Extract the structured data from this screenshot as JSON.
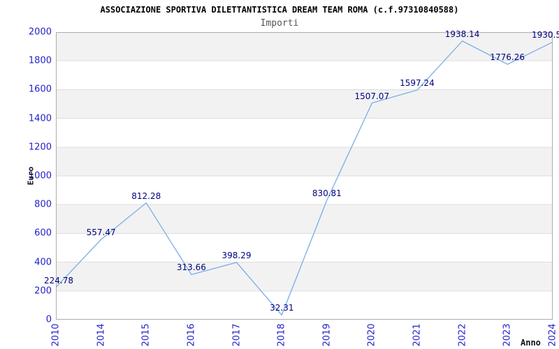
{
  "chart_data": {
    "type": "line",
    "title": "ASSOCIAZIONE SPORTIVA DILETTANTISTICA DREAM TEAM ROMA (c.f.97310840588)",
    "subtitle": "Importi",
    "xlabel": "Anno",
    "ylabel": "Euro",
    "categories": [
      "2010",
      "2014",
      "2015",
      "2016",
      "2017",
      "2018",
      "2019",
      "2020",
      "2021",
      "2022",
      "2023",
      "2024"
    ],
    "values": [
      224.78,
      557.47,
      812.28,
      313.66,
      398.29,
      32.31,
      830.81,
      1507.07,
      1597.24,
      1938.14,
      1776.26,
      1930.5
    ],
    "data_labels": [
      "224.78",
      "557.47",
      "812.28",
      "313.66",
      "398.29",
      "32.31",
      "830.81",
      "1507.07",
      "1597.24",
      "1938.14",
      "1776.26",
      "1930.5"
    ],
    "ylim": [
      0,
      2000
    ],
    "ytick_step": 200,
    "grid": true,
    "legend_position": "none",
    "colors": {
      "line": "#79ADE8",
      "band": "#F2F2F2",
      "gridline": "#DEDEDE",
      "axis_border": "#ADADAD",
      "tick_label": "#2222CC",
      "data_label": "#000080",
      "title": "#000000",
      "subtitle": "#555555",
      "axis_title": "#111111",
      "background": "#FFFFFF"
    }
  }
}
